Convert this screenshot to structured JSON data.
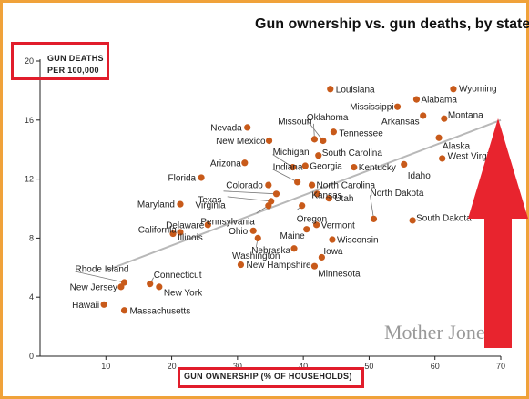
{
  "chart_data": {
    "type": "scatter",
    "title": "Gun ownership vs. gun deaths, by state",
    "ylabel_line1": "GUN DEATHS",
    "ylabel_line2": "PER 100,000",
    "xlabel": "GUN OWNERSHIP (% OF HOUSEHOLDS)",
    "xlim": [
      0,
      70
    ],
    "ylim": [
      0,
      20
    ],
    "xticks": [
      10,
      20,
      30,
      40,
      50,
      60,
      70
    ],
    "yticks": [
      4,
      8,
      12,
      16,
      20
    ],
    "show_zero_tick": true,
    "trendline": [
      [
        10,
        5.8
      ],
      [
        70,
        16.0
      ]
    ],
    "point_color": "#c85a1a",
    "trend_color": "#b8b8b8",
    "points": [
      {
        "label": "Louisiana",
        "x": 44.1,
        "y": 18.1
      },
      {
        "label": "Wyoming",
        "x": 62.8,
        "y": 18.1
      },
      {
        "label": "Alabama",
        "x": 57.2,
        "y": 17.4
      },
      {
        "label": "Mississippi",
        "x": 54.3,
        "y": 16.9
      },
      {
        "label": "Arkansas",
        "x": 58.2,
        "y": 16.3
      },
      {
        "label": "Montana",
        "x": 61.4,
        "y": 16.1
      },
      {
        "label": "Nevada",
        "x": 31.5,
        "y": 15.5
      },
      {
        "label": "Oklahoma",
        "x": 43.0,
        "y": 14.6
      },
      {
        "label": "Missouri",
        "x": 41.7,
        "y": 14.7
      },
      {
        "label": "Tennessee",
        "x": 44.6,
        "y": 15.2
      },
      {
        "label": "Alaska",
        "x": 60.6,
        "y": 14.8
      },
      {
        "label": "New Mexico",
        "x": 34.8,
        "y": 14.6
      },
      {
        "label": "South Carolina",
        "x": 42.3,
        "y": 13.6
      },
      {
        "label": "Michigan",
        "x": 38.4,
        "y": 12.8
      },
      {
        "label": "West Virginia",
        "x": 61.1,
        "y": 13.4
      },
      {
        "label": "Arizona",
        "x": 31.1,
        "y": 13.1
      },
      {
        "label": "Georgia",
        "x": 40.3,
        "y": 12.9
      },
      {
        "label": "Kentucky",
        "x": 47.7,
        "y": 12.8
      },
      {
        "label": "Idaho",
        "x": 55.3,
        "y": 13.0
      },
      {
        "label": "Indiana",
        "x": 39.1,
        "y": 11.8
      },
      {
        "label": "Florida",
        "x": 24.5,
        "y": 12.1
      },
      {
        "label": "North Carolina",
        "x": 41.3,
        "y": 11.6
      },
      {
        "label": "Colorado",
        "x": 34.7,
        "y": 11.6
      },
      {
        "label": "Texas",
        "x": 35.9,
        "y": 11.0
      },
      {
        "label": "Kansas",
        "x": 42.1,
        "y": 11.0
      },
      {
        "label": "Virginia",
        "x": 35.1,
        "y": 10.5
      },
      {
        "label": "Utah",
        "x": 43.9,
        "y": 10.7
      },
      {
        "label": "Maryland",
        "x": 21.3,
        "y": 10.3
      },
      {
        "label": "Pennsylvania",
        "x": 34.7,
        "y": 10.2
      },
      {
        "label": "Oregon",
        "x": 39.8,
        "y": 10.2
      },
      {
        "label": "North Dakota",
        "x": 50.7,
        "y": 9.3
      },
      {
        "label": "South Dakota",
        "x": 56.6,
        "y": 9.2
      },
      {
        "label": "Delaware",
        "x": 25.5,
        "y": 8.9
      },
      {
        "label": "Vermont",
        "x": 42.0,
        "y": 8.9
      },
      {
        "label": "Ohio",
        "x": 32.4,
        "y": 8.5
      },
      {
        "label": "California",
        "x": 21.3,
        "y": 8.4
      },
      {
        "label": "Maine",
        "x": 40.5,
        "y": 8.6
      },
      {
        "label": "Illinois",
        "x": 20.2,
        "y": 8.3
      },
      {
        "label": "Wisconsin",
        "x": 44.4,
        "y": 7.9
      },
      {
        "label": "Washington",
        "x": 33.1,
        "y": 8.0
      },
      {
        "label": "Nebraska",
        "x": 38.6,
        "y": 7.3
      },
      {
        "label": "Iowa",
        "x": 42.8,
        "y": 6.7
      },
      {
        "label": "New Hampshire",
        "x": 30.5,
        "y": 6.2
      },
      {
        "label": "Minnesota",
        "x": 41.7,
        "y": 6.1
      },
      {
        "label": "Rhode Island",
        "x": 12.8,
        "y": 5.0
      },
      {
        "label": "Connecticut",
        "x": 16.7,
        "y": 4.9
      },
      {
        "label": "New Jersey",
        "x": 12.3,
        "y": 4.7
      },
      {
        "label": "New York",
        "x": 18.1,
        "y": 4.7
      },
      {
        "label": "Hawaii",
        "x": 9.7,
        "y": 3.5
      },
      {
        "label": "Massachusetts",
        "x": 12.8,
        "y": 3.1
      }
    ]
  },
  "watermark": "Mother Jones",
  "annotation": {
    "arrow_color": "#e8242e",
    "highlight_box_color": "#e11d2b"
  }
}
